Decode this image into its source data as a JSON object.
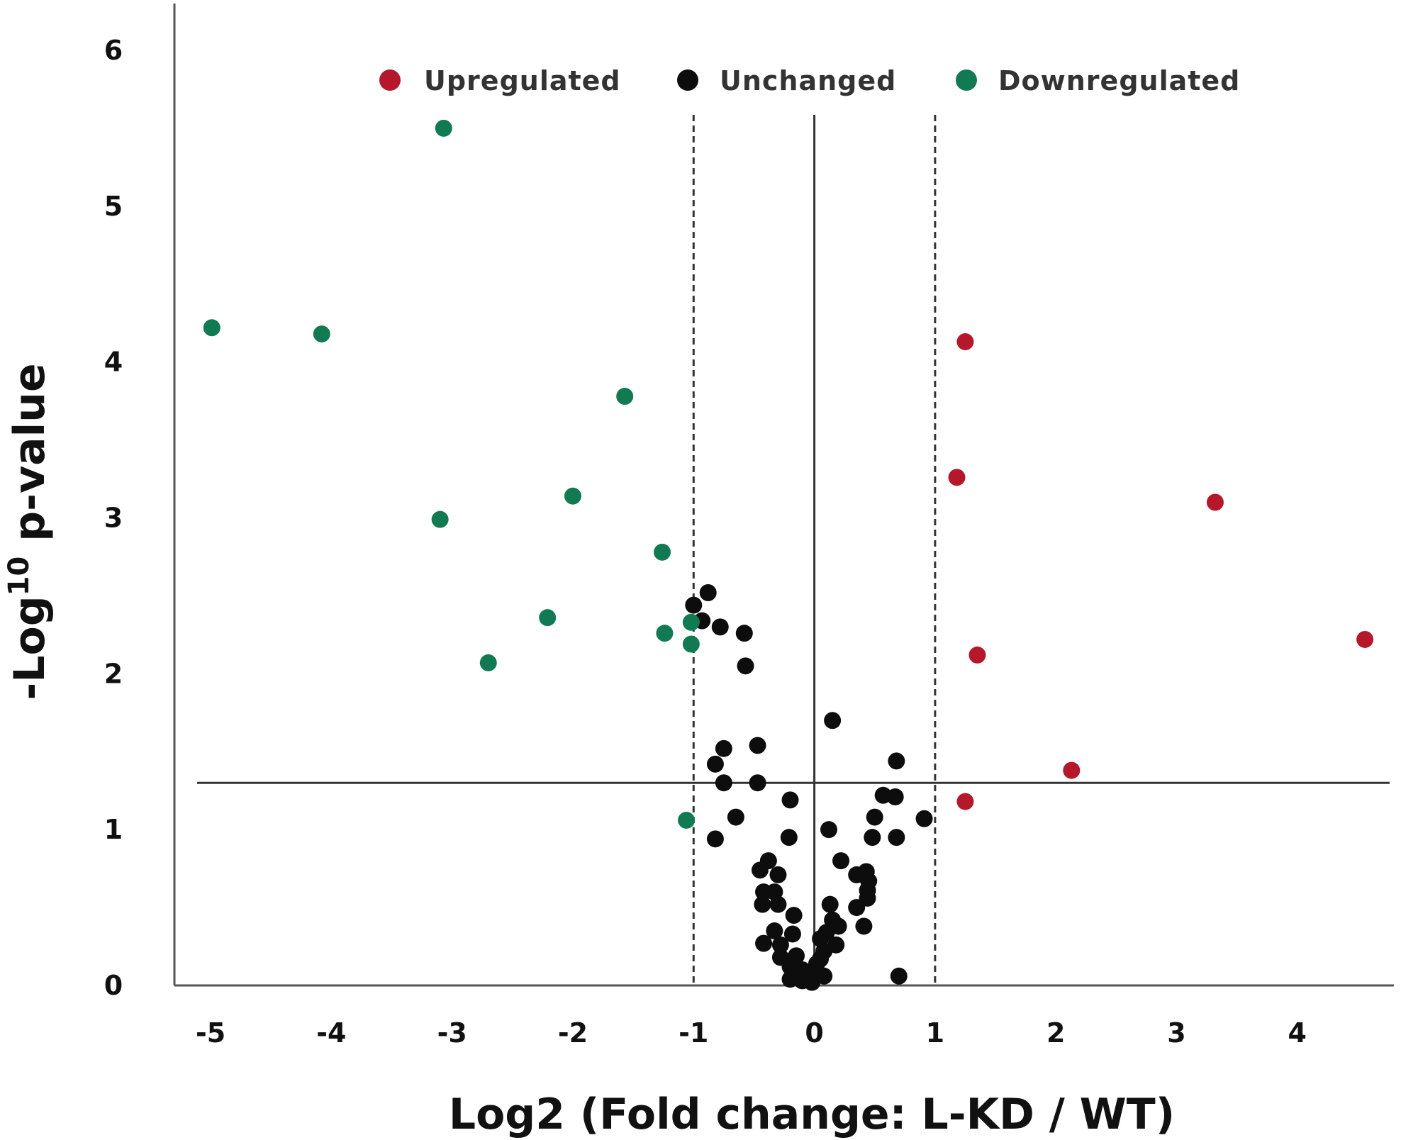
{
  "chart_data": {
    "type": "scatter",
    "xlabel": "Log2 (Fold change: L-KD / WT)",
    "ylabel": {
      "prefix": "-Log",
      "superscript": "10",
      "suffix": " p-value"
    },
    "xlim": [
      -5.3,
      4.8
    ],
    "ylim": [
      0,
      6.3
    ],
    "xticks": [
      "-5",
      "-4",
      "-3",
      "-2",
      "-1",
      "0",
      "1",
      "2",
      "3",
      "4"
    ],
    "yticks": [
      "0",
      "1",
      "2",
      "3",
      "4",
      "5",
      "6"
    ],
    "legend_position": "top",
    "reference_lines": {
      "vertical_dashed": [
        -1,
        1
      ],
      "vertical_solid": [
        0
      ],
      "horizontal_solid": [
        1.3
      ]
    },
    "series": [
      {
        "name": "Upregulated",
        "color": "#b5172b",
        "points": [
          [
            1.25,
            4.13
          ],
          [
            1.18,
            3.26
          ],
          [
            3.32,
            3.1
          ],
          [
            1.35,
            2.12
          ],
          [
            4.56,
            2.22
          ],
          [
            2.13,
            1.38
          ],
          [
            1.25,
            1.18
          ]
        ]
      },
      {
        "name": "Unchanged",
        "color": "#0d0d0d",
        "points": [
          [
            -1.0,
            2.44
          ],
          [
            -0.88,
            2.52
          ],
          [
            -0.93,
            2.34
          ],
          [
            -0.78,
            2.3
          ],
          [
            -0.58,
            2.26
          ],
          [
            -0.57,
            2.05
          ],
          [
            0.15,
            1.7
          ],
          [
            -0.75,
            1.52
          ],
          [
            -0.47,
            1.54
          ],
          [
            -0.82,
            1.42
          ],
          [
            -0.75,
            1.3
          ],
          [
            -0.47,
            1.3
          ],
          [
            0.68,
            1.44
          ],
          [
            0.57,
            1.22
          ],
          [
            0.67,
            1.21
          ],
          [
            -0.65,
            1.08
          ],
          [
            -0.2,
            1.19
          ],
          [
            0.5,
            1.08
          ],
          [
            0.91,
            1.07
          ],
          [
            0.12,
            1.0
          ],
          [
            -0.82,
            0.94
          ],
          [
            -0.21,
            0.95
          ],
          [
            0.48,
            0.95
          ],
          [
            0.68,
            0.95
          ],
          [
            -0.38,
            0.8
          ],
          [
            0.22,
            0.8
          ],
          [
            -0.45,
            0.74
          ],
          [
            -0.3,
            0.71
          ],
          [
            0.35,
            0.71
          ],
          [
            0.43,
            0.73
          ],
          [
            0.45,
            0.67
          ],
          [
            0.44,
            0.61
          ],
          [
            -0.42,
            0.6
          ],
          [
            -0.33,
            0.6
          ],
          [
            0.44,
            0.56
          ],
          [
            -0.43,
            0.52
          ],
          [
            -0.3,
            0.52
          ],
          [
            0.13,
            0.52
          ],
          [
            0.35,
            0.5
          ],
          [
            -0.17,
            0.45
          ],
          [
            0.15,
            0.42
          ],
          [
            0.41,
            0.38
          ],
          [
            -0.33,
            0.35
          ],
          [
            -0.18,
            0.33
          ],
          [
            0.1,
            0.34
          ],
          [
            0.2,
            0.38
          ],
          [
            0.05,
            0.3
          ],
          [
            -0.42,
            0.27
          ],
          [
            -0.28,
            0.26
          ],
          [
            0.18,
            0.26
          ],
          [
            0.08,
            0.22
          ],
          [
            -0.28,
            0.18
          ],
          [
            -0.15,
            0.19
          ],
          [
            0.05,
            0.17
          ],
          [
            -0.2,
            0.12
          ],
          [
            0.02,
            0.14
          ],
          [
            -0.1,
            0.1
          ],
          [
            0.0,
            0.08
          ],
          [
            -0.18,
            0.06
          ],
          [
            -0.05,
            0.05
          ],
          [
            0.08,
            0.06
          ],
          [
            0.7,
            0.06
          ],
          [
            -0.2,
            0.04
          ],
          [
            -0.1,
            0.03
          ],
          [
            -0.02,
            0.02
          ]
        ]
      },
      {
        "name": "Downregulated",
        "color": "#117a52",
        "points": [
          [
            -3.07,
            5.5
          ],
          [
            -4.99,
            4.22
          ],
          [
            -4.08,
            4.18
          ],
          [
            -1.57,
            3.78
          ],
          [
            -2.0,
            3.14
          ],
          [
            -3.1,
            2.99
          ],
          [
            -1.26,
            2.78
          ],
          [
            -2.21,
            2.36
          ],
          [
            -1.02,
            2.33
          ],
          [
            -1.24,
            2.26
          ],
          [
            -1.02,
            2.19
          ],
          [
            -2.7,
            2.07
          ],
          [
            -1.06,
            1.06
          ]
        ]
      }
    ]
  }
}
